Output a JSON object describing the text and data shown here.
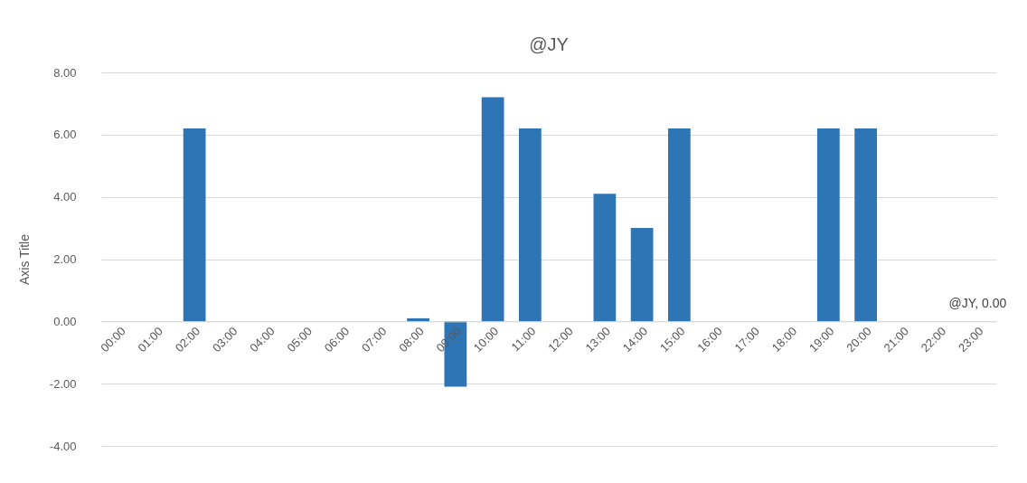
{
  "chart_data": {
    "type": "bar",
    "title": "@JY",
    "ylabel": "Axis Title",
    "categories": [
      "00:00",
      "01:00",
      "02:00",
      "03:00",
      "04:00",
      "05:00",
      "06:00",
      "07:00",
      "08:00",
      "09:00",
      "10:00",
      "11:00",
      "12:00",
      "13:00",
      "14:00",
      "15:00",
      "16:00",
      "17:00",
      "18:00",
      "19:00",
      "20:00",
      "21:00",
      "22:00",
      "23:00"
    ],
    "values": [
      0,
      0,
      6.2,
      0,
      0,
      0,
      0,
      0,
      0.1,
      -2.1,
      7.2,
      6.2,
      0,
      4.1,
      3.0,
      6.2,
      0,
      0,
      0,
      6.2,
      6.2,
      0,
      0,
      0
    ],
    "value_labels": [
      null,
      null,
      null,
      null,
      null,
      null,
      null,
      null,
      null,
      null,
      null,
      null,
      null,
      null,
      null,
      null,
      null,
      null,
      null,
      null,
      null,
      null,
      null,
      "@JY, 0.00"
    ],
    "color": "#2e75b6",
    "ylim": [
      -4,
      8
    ],
    "yticks": [
      {
        "value": -4,
        "label": "-4.00"
      },
      {
        "value": -2,
        "label": "-2.00"
      },
      {
        "value": 0,
        "label": "0.00"
      },
      {
        "value": 2,
        "label": "2.00"
      },
      {
        "value": 4,
        "label": "4.00"
      },
      {
        "value": 6,
        "label": "6.00"
      },
      {
        "value": 8,
        "label": "8.00"
      }
    ],
    "grid": "y"
  }
}
